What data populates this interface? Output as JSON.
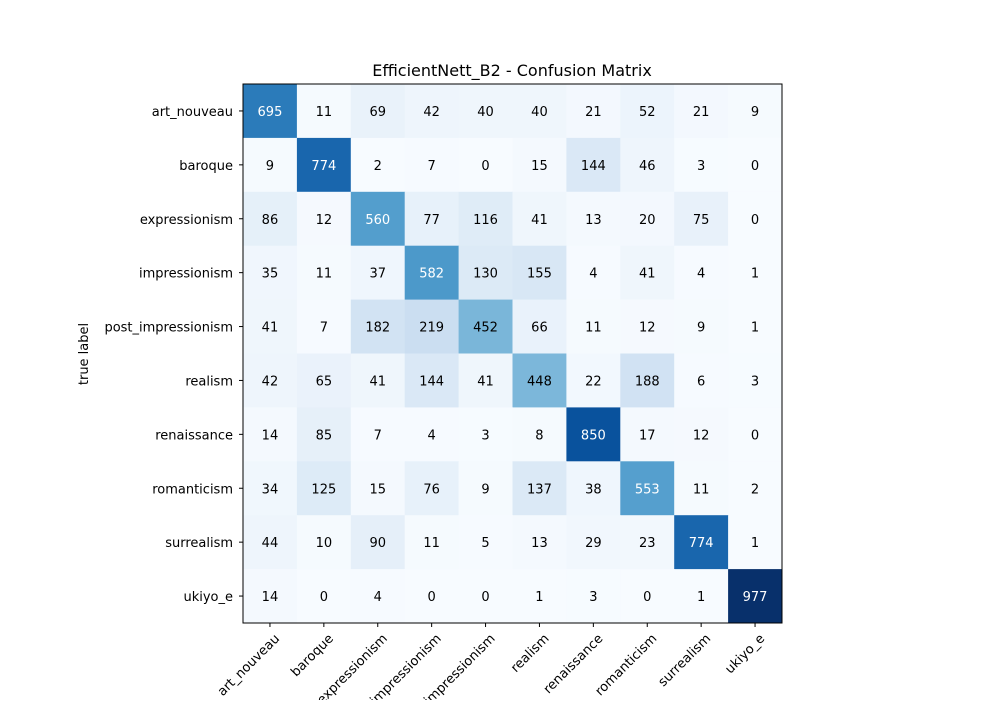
{
  "chart_data": {
    "type": "heatmap",
    "title": "EfficientNett_B2 - Confusion Matrix",
    "ylabel": "true label",
    "xlabel": "",
    "colormap": "Blues",
    "row_labels": [
      "art_nouveau",
      "baroque",
      "expressionism",
      "impressionism",
      "post_impressionism",
      "realism",
      "renaissance",
      "romanticism",
      "surrealism",
      "ukiyo_e"
    ],
    "col_labels": [
      "art_nouveau",
      "baroque",
      "expressionism",
      "impressionism",
      "post_impressionism",
      "realism",
      "renaissance",
      "romanticism",
      "surrealism",
      "ukiyo_e"
    ],
    "values": [
      [
        695,
        11,
        69,
        42,
        40,
        40,
        21,
        52,
        21,
        9
      ],
      [
        9,
        774,
        2,
        7,
        0,
        15,
        144,
        46,
        3,
        0
      ],
      [
        86,
        12,
        560,
        77,
        116,
        41,
        13,
        20,
        75,
        0
      ],
      [
        35,
        11,
        37,
        582,
        130,
        155,
        4,
        41,
        4,
        1
      ],
      [
        41,
        7,
        182,
        219,
        452,
        66,
        11,
        12,
        9,
        1
      ],
      [
        42,
        65,
        41,
        144,
        41,
        448,
        22,
        188,
        6,
        3
      ],
      [
        14,
        85,
        7,
        4,
        3,
        8,
        850,
        17,
        12,
        0
      ],
      [
        34,
        125,
        15,
        76,
        9,
        137,
        38,
        553,
        11,
        2
      ],
      [
        44,
        10,
        90,
        11,
        5,
        13,
        29,
        23,
        774,
        1
      ],
      [
        14,
        0,
        4,
        0,
        0,
        1,
        3,
        0,
        1,
        977
      ]
    ],
    "vmin": 0,
    "vmax": 977
  }
}
